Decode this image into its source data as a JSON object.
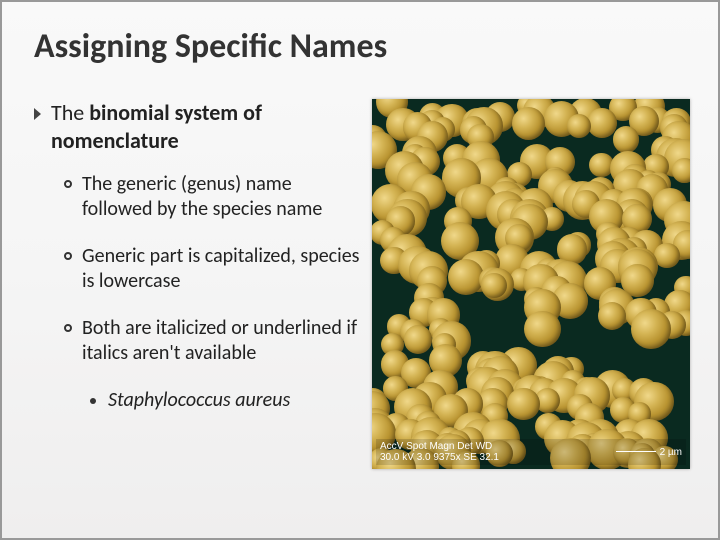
{
  "title": "Assigning Specific Names",
  "main": {
    "prefix": "The ",
    "bold": "binomial system of nomenclature"
  },
  "subs": [
    "The generic (genus) name followed by the species name",
    "Generic part is capitalized, species is lowercase",
    "Both are italicized or underlined if italics aren't available"
  ],
  "example": "Staphylococcus aureus",
  "image": {
    "background_color": "#0a2a20",
    "coccus_colors": {
      "hi": "#f0d88a",
      "mid": "#d4b454",
      "lo": "#ba9532",
      "dark": "#8a6b1e"
    },
    "scale_left": "AccV  Spot Magn  Det  WD",
    "scale_right_label": "2 µm",
    "scale_label2": "30.0 kV 3.0 9375x SE 32.1"
  },
  "style": {
    "title_fontsize": 34,
    "body_fontsize": 20,
    "title_color": "#333333",
    "text_color": "#222222",
    "slide_border": "#999999",
    "bg_gradient": [
      "#f9f9f9",
      "#efeeee"
    ]
  }
}
